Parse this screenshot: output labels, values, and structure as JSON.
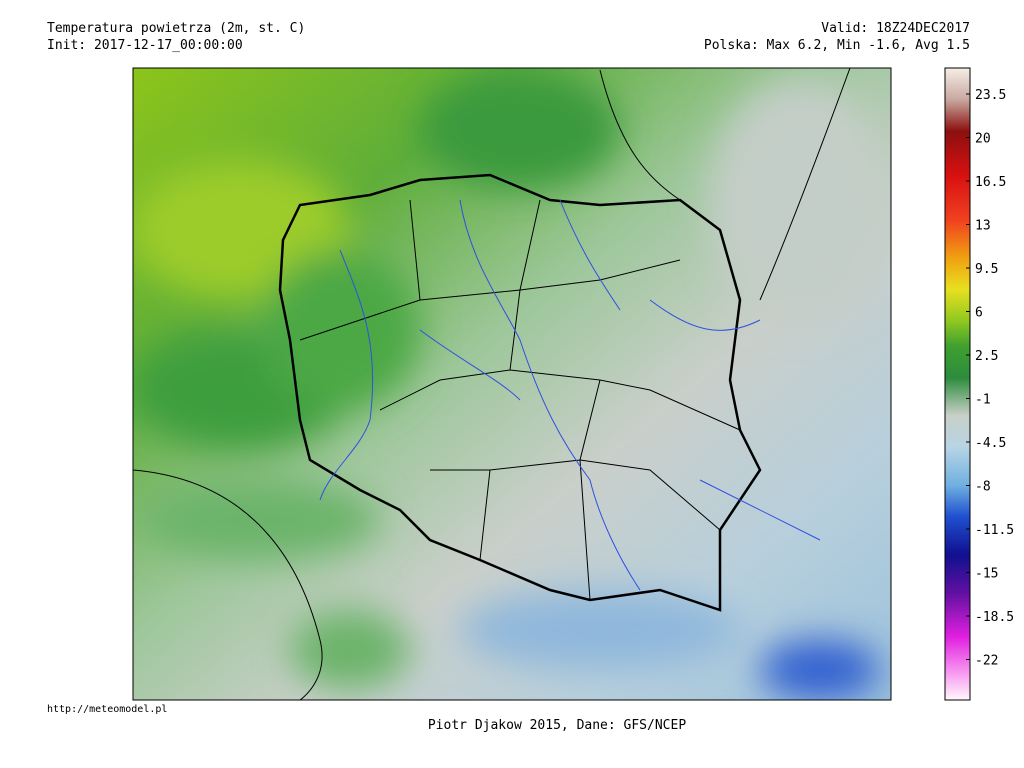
{
  "header": {
    "title": "Temperatura powietrza (2m, st. C)",
    "init": "Init: 2017-12-17_00:00:00",
    "valid": "Valid: 18Z24DEC2017",
    "stats": "Polska: Max  6.2, Min -1.6, Avg  1.5"
  },
  "colorbar": {
    "ticks": [
      23.5,
      20,
      16.5,
      13,
      9.5,
      6,
      2.5,
      -1,
      -4.5,
      -8,
      -11.5,
      -15,
      -18.5,
      -22
    ]
  },
  "footer": {
    "url": "http://meteomodel.pl",
    "credit": "Piotr Djakow 2015, Dane: GFS/NCEP"
  }
}
